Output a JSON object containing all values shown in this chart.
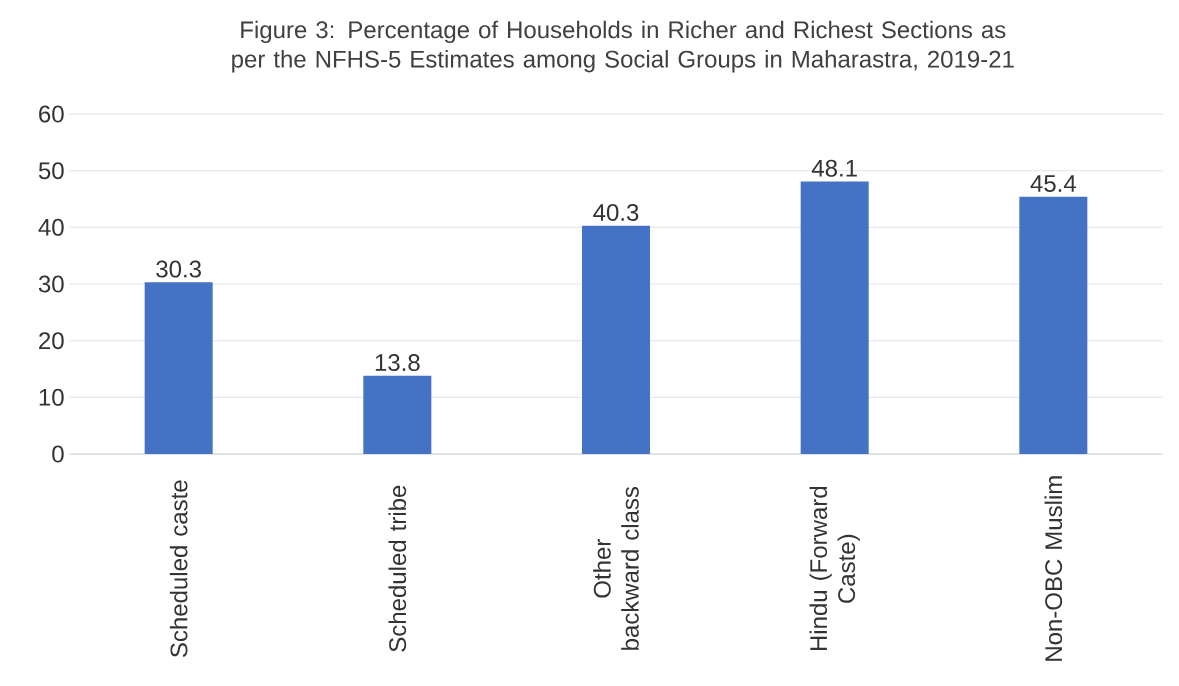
{
  "chart_data": {
    "type": "bar",
    "title": "Figure 3: Percentage of Households in Richer and Richest Sections as per the NFHS-5 Estimates among Social Groups in Maharastra, 2019-21",
    "categories": [
      "Scheduled caste",
      "Scheduled tribe",
      "Other backward class",
      "Hindu (Forward Caste)",
      "Non-OBC Muslim"
    ],
    "values": [
      30.3,
      13.8,
      40.3,
      48.1,
      45.4
    ],
    "color": "#4472c4",
    "ylim": [
      0,
      60
    ],
    "yticks": [
      0,
      10,
      20,
      30,
      40,
      50,
      60
    ],
    "grid": "y",
    "data_labels": true
  }
}
